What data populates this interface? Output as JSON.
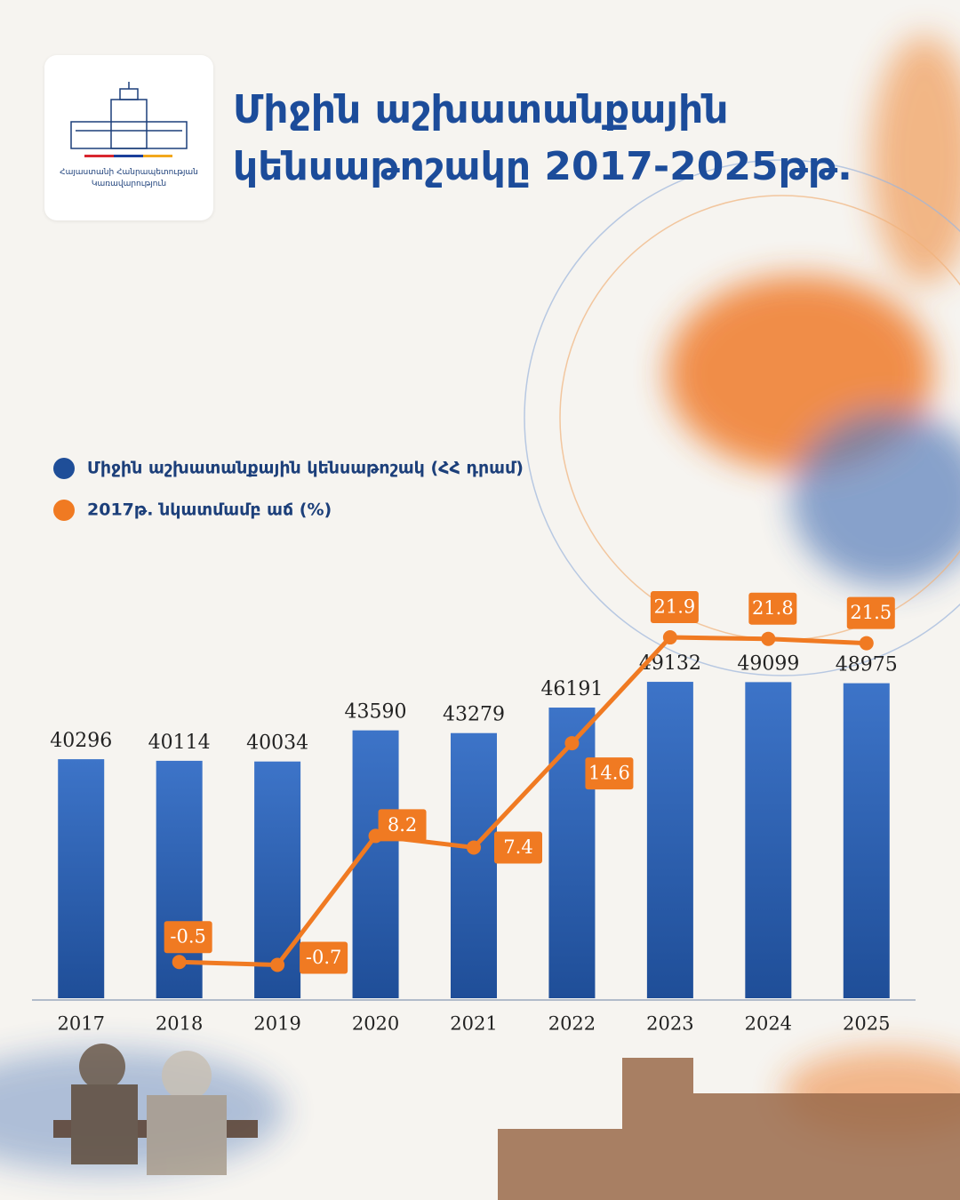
{
  "logo_text": "Հայաստանի Հանրապետության Կառավարություն",
  "chart_data": {
    "type": "bar-line",
    "title": "Միջին աշխատանքային կենսաթոշակը 2017-2025թթ.",
    "categories": [
      "2017",
      "2018",
      "2019",
      "2020",
      "2021",
      "2022",
      "2023",
      "2024",
      "2025"
    ],
    "series": [
      {
        "name": "Միջին աշխատանքային կենսաթոշակ (ՀՀ դրամ)",
        "color": "#1f4e98",
        "type": "bar",
        "values": [
          40296,
          40114,
          40034,
          43590,
          43279,
          46191,
          49132,
          49099,
          48975
        ]
      },
      {
        "name": "2017թ. նկատմամբ աճ (%)",
        "color": "#f07a22",
        "type": "line",
        "axis": "y2",
        "values": [
          null,
          -0.5,
          -0.7,
          8.2,
          7.4,
          14.6,
          21.9,
          21.8,
          21.5
        ]
      }
    ],
    "ylim": [
      13000,
      60000
    ],
    "y2lim": [
      -3,
      25.4
    ],
    "legend": "upper left"
  }
}
